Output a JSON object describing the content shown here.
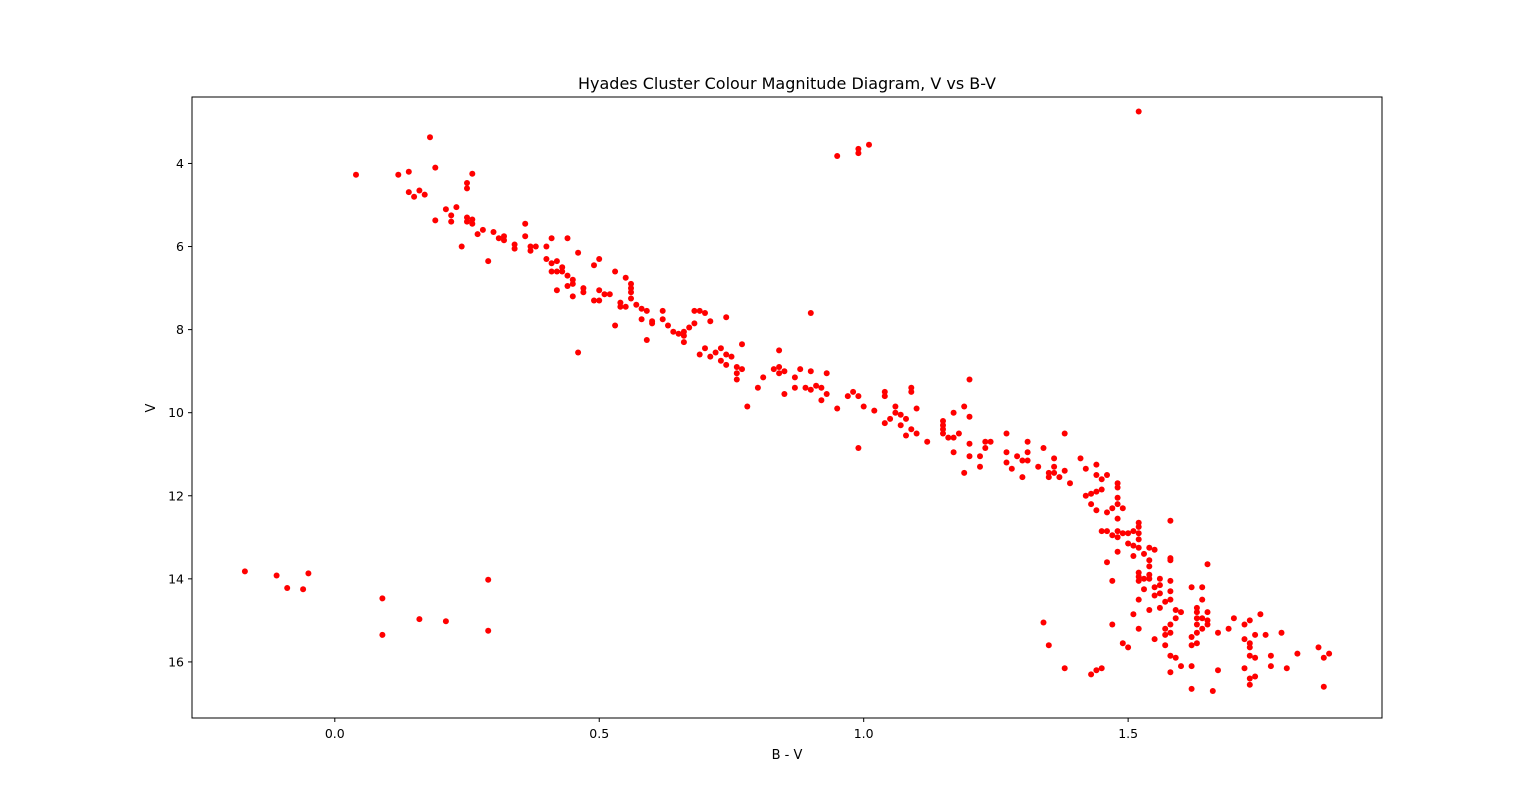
{
  "chart_data": {
    "type": "scatter",
    "title": "Hyades Cluster Colour Magnitude Diagram, V vs B-V",
    "xlabel": "B - V",
    "ylabel": "V",
    "xlim": [
      -0.27,
      1.98
    ],
    "ylim": [
      17.35,
      2.4
    ],
    "y_inverted": true,
    "grid": false,
    "marker_color": "#ff0000",
    "xticks": [
      {
        "value": 0.0,
        "label": "0.0"
      },
      {
        "value": 0.5,
        "label": "0.5"
      },
      {
        "value": 1.0,
        "label": "1.0"
      },
      {
        "value": 1.5,
        "label": "1.5"
      }
    ],
    "yticks": [
      {
        "value": 4,
        "label": "4"
      },
      {
        "value": 6,
        "label": "6"
      },
      {
        "value": 8,
        "label": "8"
      },
      {
        "value": 10,
        "label": "10"
      },
      {
        "value": 12,
        "label": "12"
      },
      {
        "value": 14,
        "label": "14"
      },
      {
        "value": 16,
        "label": "16"
      }
    ],
    "points": [
      [
        0.04,
        4.27
      ],
      [
        0.12,
        4.27
      ],
      [
        0.14,
        4.2
      ],
      [
        0.14,
        4.69
      ],
      [
        0.15,
        4.8
      ],
      [
        0.16,
        4.65
      ],
      [
        0.17,
        4.75
      ],
      [
        0.18,
        3.37
      ],
      [
        0.19,
        4.1
      ],
      [
        0.19,
        5.37
      ],
      [
        0.21,
        5.1
      ],
      [
        0.22,
        5.25
      ],
      [
        0.22,
        5.4
      ],
      [
        0.23,
        5.05
      ],
      [
        0.24,
        6.0
      ],
      [
        0.25,
        4.47
      ],
      [
        0.25,
        4.6
      ],
      [
        0.25,
        5.3
      ],
      [
        0.25,
        5.4
      ],
      [
        0.26,
        4.25
      ],
      [
        0.26,
        5.35
      ],
      [
        0.26,
        5.45
      ],
      [
        0.27,
        5.7
      ],
      [
        0.28,
        5.6
      ],
      [
        0.29,
        6.35
      ],
      [
        0.3,
        5.65
      ],
      [
        0.31,
        5.8
      ],
      [
        0.32,
        5.75
      ],
      [
        0.32,
        5.85
      ],
      [
        0.34,
        5.95
      ],
      [
        0.34,
        6.05
      ],
      [
        0.36,
        5.45
      ],
      [
        0.36,
        5.75
      ],
      [
        0.37,
        6.0
      ],
      [
        0.37,
        6.1
      ],
      [
        0.38,
        6.0
      ],
      [
        0.4,
        6.0
      ],
      [
        0.4,
        6.3
      ],
      [
        0.41,
        5.8
      ],
      [
        0.41,
        6.4
      ],
      [
        0.41,
        6.6
      ],
      [
        0.42,
        6.35
      ],
      [
        0.42,
        6.6
      ],
      [
        0.42,
        7.05
      ],
      [
        0.43,
        6.5
      ],
      [
        0.43,
        6.6
      ],
      [
        0.44,
        5.8
      ],
      [
        0.44,
        6.7
      ],
      [
        0.44,
        6.95
      ],
      [
        0.45,
        6.8
      ],
      [
        0.45,
        6.9
      ],
      [
        0.45,
        7.2
      ],
      [
        0.46,
        6.15
      ],
      [
        0.46,
        8.55
      ],
      [
        0.47,
        7.0
      ],
      [
        0.47,
        7.1
      ],
      [
        0.49,
        6.45
      ],
      [
        0.49,
        7.3
      ],
      [
        0.5,
        6.3
      ],
      [
        0.5,
        7.05
      ],
      [
        0.5,
        7.3
      ],
      [
        0.51,
        7.15
      ],
      [
        0.52,
        7.15
      ],
      [
        0.53,
        6.6
      ],
      [
        0.53,
        7.9
      ],
      [
        0.54,
        7.35
      ],
      [
        0.54,
        7.45
      ],
      [
        0.55,
        6.75
      ],
      [
        0.55,
        7.45
      ],
      [
        0.56,
        6.9
      ],
      [
        0.56,
        7.0
      ],
      [
        0.56,
        7.1
      ],
      [
        0.56,
        7.25
      ],
      [
        0.57,
        7.4
      ],
      [
        0.58,
        7.5
      ],
      [
        0.58,
        7.75
      ],
      [
        0.59,
        7.55
      ],
      [
        0.59,
        8.25
      ],
      [
        0.6,
        7.8
      ],
      [
        0.6,
        7.85
      ],
      [
        0.62,
        7.55
      ],
      [
        0.62,
        7.75
      ],
      [
        0.63,
        7.9
      ],
      [
        0.64,
        8.05
      ],
      [
        0.65,
        8.1
      ],
      [
        0.66,
        8.05
      ],
      [
        0.66,
        8.15
      ],
      [
        0.66,
        8.3
      ],
      [
        0.67,
        7.95
      ],
      [
        0.68,
        7.55
      ],
      [
        0.68,
        7.85
      ],
      [
        0.69,
        7.55
      ],
      [
        0.69,
        8.6
      ],
      [
        0.7,
        7.6
      ],
      [
        0.7,
        8.45
      ],
      [
        0.71,
        7.8
      ],
      [
        0.71,
        8.65
      ],
      [
        0.72,
        8.55
      ],
      [
        0.73,
        8.45
      ],
      [
        0.73,
        8.75
      ],
      [
        0.74,
        7.7
      ],
      [
        0.74,
        8.6
      ],
      [
        0.74,
        8.85
      ],
      [
        0.75,
        8.65
      ],
      [
        0.76,
        8.9
      ],
      [
        0.76,
        9.05
      ],
      [
        0.76,
        9.2
      ],
      [
        0.77,
        8.35
      ],
      [
        0.77,
        8.95
      ],
      [
        0.78,
        9.85
      ],
      [
        0.8,
        9.4
      ],
      [
        0.81,
        9.15
      ],
      [
        0.83,
        8.95
      ],
      [
        0.84,
        8.5
      ],
      [
        0.84,
        8.9
      ],
      [
        0.84,
        9.05
      ],
      [
        0.85,
        9.0
      ],
      [
        0.85,
        9.55
      ],
      [
        0.87,
        9.15
      ],
      [
        0.87,
        9.4
      ],
      [
        0.88,
        8.95
      ],
      [
        0.89,
        9.4
      ],
      [
        0.9,
        7.6
      ],
      [
        0.9,
        9.0
      ],
      [
        0.9,
        9.45
      ],
      [
        0.91,
        9.35
      ],
      [
        0.92,
        9.4
      ],
      [
        0.92,
        9.7
      ],
      [
        0.93,
        9.05
      ],
      [
        0.93,
        9.55
      ],
      [
        0.95,
        3.82
      ],
      [
        0.95,
        9.9
      ],
      [
        0.97,
        9.6
      ],
      [
        0.98,
        9.5
      ],
      [
        0.99,
        3.65
      ],
      [
        0.99,
        3.75
      ],
      [
        0.99,
        9.6
      ],
      [
        0.99,
        10.85
      ],
      [
        1.0,
        9.85
      ],
      [
        1.01,
        3.55
      ],
      [
        1.02,
        9.95
      ],
      [
        1.04,
        9.5
      ],
      [
        1.04,
        9.6
      ],
      [
        1.04,
        10.25
      ],
      [
        1.05,
        10.15
      ],
      [
        1.06,
        9.85
      ],
      [
        1.06,
        10.0
      ],
      [
        1.07,
        10.05
      ],
      [
        1.07,
        10.3
      ],
      [
        1.08,
        10.15
      ],
      [
        1.08,
        10.55
      ],
      [
        1.09,
        9.4
      ],
      [
        1.09,
        9.5
      ],
      [
        1.09,
        10.4
      ],
      [
        1.1,
        9.9
      ],
      [
        1.1,
        10.5
      ],
      [
        1.12,
        10.7
      ],
      [
        1.15,
        10.2
      ],
      [
        1.15,
        10.3
      ],
      [
        1.15,
        10.4
      ],
      [
        1.15,
        10.5
      ],
      [
        1.16,
        10.6
      ],
      [
        1.17,
        10.0
      ],
      [
        1.17,
        10.6
      ],
      [
        1.17,
        10.95
      ],
      [
        1.18,
        10.5
      ],
      [
        1.19,
        9.85
      ],
      [
        1.19,
        11.45
      ],
      [
        1.2,
        9.2
      ],
      [
        1.2,
        10.1
      ],
      [
        1.2,
        10.75
      ],
      [
        1.2,
        11.05
      ],
      [
        1.22,
        11.05
      ],
      [
        1.22,
        11.3
      ],
      [
        1.23,
        10.7
      ],
      [
        1.23,
        10.85
      ],
      [
        1.24,
        10.7
      ],
      [
        1.27,
        10.5
      ],
      [
        1.27,
        10.95
      ],
      [
        1.27,
        11.2
      ],
      [
        1.28,
        11.35
      ],
      [
        1.29,
        11.05
      ],
      [
        1.3,
        11.15
      ],
      [
        1.3,
        11.55
      ],
      [
        1.31,
        10.7
      ],
      [
        1.31,
        10.95
      ],
      [
        1.31,
        11.15
      ],
      [
        1.33,
        11.3
      ],
      [
        1.34,
        10.85
      ],
      [
        1.34,
        15.05
      ],
      [
        1.35,
        11.45
      ],
      [
        1.35,
        11.55
      ],
      [
        1.35,
        15.6
      ],
      [
        1.36,
        11.1
      ],
      [
        1.36,
        11.3
      ],
      [
        1.36,
        11.45
      ],
      [
        1.37,
        11.55
      ],
      [
        1.38,
        10.5
      ],
      [
        1.38,
        11.4
      ],
      [
        1.38,
        16.15
      ],
      [
        1.39,
        11.7
      ],
      [
        1.41,
        11.1
      ],
      [
        1.42,
        11.35
      ],
      [
        1.42,
        12.0
      ],
      [
        1.43,
        11.95
      ],
      [
        1.43,
        12.2
      ],
      [
        1.43,
        16.3
      ],
      [
        1.44,
        11.25
      ],
      [
        1.44,
        11.5
      ],
      [
        1.44,
        11.9
      ],
      [
        1.44,
        12.35
      ],
      [
        1.44,
        16.2
      ],
      [
        1.45,
        11.6
      ],
      [
        1.45,
        11.85
      ],
      [
        1.45,
        12.85
      ],
      [
        1.45,
        16.15
      ],
      [
        1.46,
        11.5
      ],
      [
        1.46,
        12.4
      ],
      [
        1.46,
        12.85
      ],
      [
        1.46,
        13.6
      ],
      [
        1.47,
        12.3
      ],
      [
        1.47,
        12.95
      ],
      [
        1.47,
        14.05
      ],
      [
        1.47,
        15.1
      ],
      [
        1.48,
        11.7
      ],
      [
        1.48,
        11.8
      ],
      [
        1.48,
        12.05
      ],
      [
        1.48,
        12.2
      ],
      [
        1.48,
        12.55
      ],
      [
        1.48,
        12.85
      ],
      [
        1.48,
        13.0
      ],
      [
        1.48,
        13.35
      ],
      [
        1.49,
        12.3
      ],
      [
        1.49,
        12.9
      ],
      [
        1.49,
        15.55
      ],
      [
        1.5,
        12.9
      ],
      [
        1.5,
        13.15
      ],
      [
        1.5,
        15.65
      ],
      [
        1.51,
        12.85
      ],
      [
        1.51,
        13.2
      ],
      [
        1.51,
        13.45
      ],
      [
        1.51,
        14.85
      ],
      [
        1.52,
        2.75
      ],
      [
        1.52,
        12.65
      ],
      [
        1.52,
        12.75
      ],
      [
        1.52,
        12.9
      ],
      [
        1.52,
        13.05
      ],
      [
        1.52,
        13.25
      ],
      [
        1.52,
        13.85
      ],
      [
        1.52,
        13.95
      ],
      [
        1.52,
        14.05
      ],
      [
        1.52,
        14.5
      ],
      [
        1.52,
        15.2
      ],
      [
        1.53,
        13.4
      ],
      [
        1.53,
        14.0
      ],
      [
        1.53,
        14.25
      ],
      [
        1.54,
        13.25
      ],
      [
        1.54,
        13.55
      ],
      [
        1.54,
        13.7
      ],
      [
        1.54,
        13.9
      ],
      [
        1.54,
        14.0
      ],
      [
        1.54,
        14.75
      ],
      [
        1.55,
        13.3
      ],
      [
        1.55,
        14.2
      ],
      [
        1.55,
        14.4
      ],
      [
        1.55,
        15.45
      ],
      [
        1.56,
        14.0
      ],
      [
        1.56,
        14.15
      ],
      [
        1.56,
        14.35
      ],
      [
        1.56,
        14.7
      ],
      [
        1.57,
        14.55
      ],
      [
        1.57,
        15.2
      ],
      [
        1.57,
        15.35
      ],
      [
        1.57,
        15.6
      ],
      [
        1.58,
        12.6
      ],
      [
        1.58,
        13.5
      ],
      [
        1.58,
        13.55
      ],
      [
        1.58,
        14.05
      ],
      [
        1.58,
        14.3
      ],
      [
        1.58,
        14.5
      ],
      [
        1.58,
        15.1
      ],
      [
        1.58,
        15.3
      ],
      [
        1.58,
        15.85
      ],
      [
        1.58,
        16.25
      ],
      [
        1.59,
        14.75
      ],
      [
        1.59,
        14.95
      ],
      [
        1.59,
        15.9
      ],
      [
        1.6,
        14.8
      ],
      [
        1.6,
        16.1
      ],
      [
        1.62,
        14.2
      ],
      [
        1.62,
        15.4
      ],
      [
        1.62,
        15.6
      ],
      [
        1.62,
        16.1
      ],
      [
        1.62,
        16.65
      ],
      [
        1.63,
        14.7
      ],
      [
        1.63,
        14.8
      ],
      [
        1.63,
        14.95
      ],
      [
        1.63,
        15.1
      ],
      [
        1.63,
        15.3
      ],
      [
        1.63,
        15.55
      ],
      [
        1.64,
        14.2
      ],
      [
        1.64,
        14.5
      ],
      [
        1.64,
        14.95
      ],
      [
        1.64,
        15.2
      ],
      [
        1.65,
        13.65
      ],
      [
        1.65,
        14.8
      ],
      [
        1.65,
        15.0
      ],
      [
        1.65,
        15.1
      ],
      [
        1.66,
        16.7
      ],
      [
        1.67,
        15.3
      ],
      [
        1.67,
        16.2
      ],
      [
        1.69,
        15.2
      ],
      [
        1.7,
        14.95
      ],
      [
        1.72,
        15.1
      ],
      [
        1.72,
        15.45
      ],
      [
        1.72,
        16.15
      ],
      [
        1.73,
        15.0
      ],
      [
        1.73,
        15.55
      ],
      [
        1.73,
        15.65
      ],
      [
        1.73,
        15.85
      ],
      [
        1.73,
        16.4
      ],
      [
        1.73,
        16.55
      ],
      [
        1.74,
        15.35
      ],
      [
        1.74,
        15.9
      ],
      [
        1.74,
        16.35
      ],
      [
        1.75,
        14.85
      ],
      [
        1.76,
        15.35
      ],
      [
        1.77,
        15.85
      ],
      [
        1.77,
        16.1
      ],
      [
        1.79,
        15.3
      ],
      [
        1.8,
        16.15
      ],
      [
        1.82,
        15.8
      ],
      [
        1.86,
        15.65
      ],
      [
        1.87,
        15.9
      ],
      [
        1.87,
        16.6
      ],
      [
        1.88,
        15.8
      ],
      [
        -0.17,
        13.82
      ],
      [
        -0.11,
        13.92
      ],
      [
        -0.09,
        14.22
      ],
      [
        -0.06,
        14.25
      ],
      [
        -0.05,
        13.87
      ],
      [
        0.09,
        14.47
      ],
      [
        0.09,
        15.35
      ],
      [
        0.16,
        14.97
      ],
      [
        0.21,
        15.02
      ],
      [
        0.29,
        14.02
      ],
      [
        0.29,
        15.25
      ]
    ]
  }
}
